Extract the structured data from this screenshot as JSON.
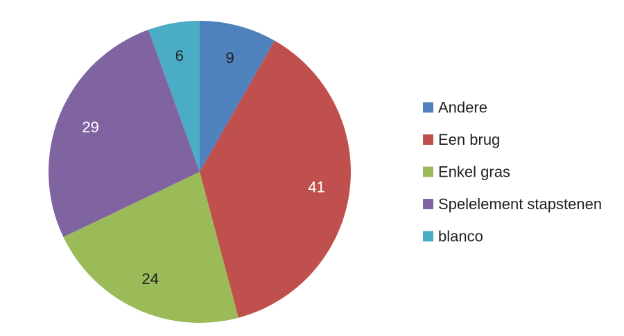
{
  "chart_data": {
    "type": "pie",
    "categories": [
      "Andere",
      "Een brug",
      "Enkel gras",
      "Spelelement stapstenen",
      "blanco"
    ],
    "values": [
      9,
      41,
      24,
      29,
      6
    ],
    "colors": [
      "#4f81bd",
      "#c0504d",
      "#9bbb59",
      "#8064a2",
      "#4bacc6"
    ],
    "label_colors": [
      "#1f1f1f",
      "#ffffff",
      "#1f1f1f",
      "#ffffff",
      "#1f1f1f"
    ],
    "start_angle": "12 o'clock",
    "direction": "clockwise",
    "data_labels": true,
    "legend_position": "right"
  }
}
